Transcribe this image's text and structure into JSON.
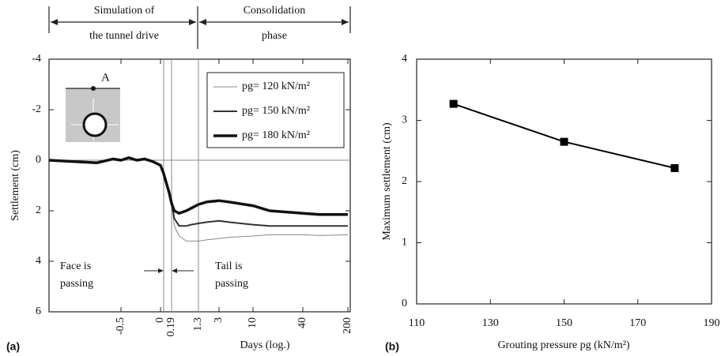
{
  "chart_data": [
    {
      "type": "line",
      "panel_label": "(a)",
      "xlabel": "Days (log.)",
      "ylabel": "Settlement (cm)",
      "xlim": [
        -1.4,
        200
      ],
      "xticks": [
        -0.5,
        0,
        0.19,
        1.3,
        3,
        10,
        40,
        200
      ],
      "ylim": [
        -4,
        6
      ],
      "yticks": [
        -4,
        -2,
        0,
        2,
        4,
        6
      ],
      "invert_y": true,
      "x": [
        -1.4,
        -0.8,
        -0.6,
        -0.5,
        -0.4,
        -0.3,
        -0.2,
        -0.1,
        0,
        0.05,
        0.1,
        0.15,
        0.19,
        0.3,
        0.5,
        0.8,
        1.0,
        1.3,
        2,
        3,
        5,
        10,
        20,
        40,
        100,
        200
      ],
      "series": [
        {
          "name": "pg= 120 kN/m²",
          "color": "#888888",
          "width": 1,
          "values": [
            0,
            0.1,
            -0.05,
            0,
            -0.1,
            0,
            -0.05,
            0.05,
            0.2,
            0.5,
            0.9,
            1.3,
            1.7,
            2.6,
            3.0,
            3.2,
            3.2,
            3.2,
            3.15,
            3.1,
            3.05,
            3.0,
            2.95,
            2.95,
            2.98,
            2.95
          ]
        },
        {
          "name": "pg= 150 kN/m²",
          "color": "#333333",
          "width": 2,
          "values": [
            0,
            0.1,
            -0.05,
            0,
            -0.1,
            0,
            -0.05,
            0.05,
            0.2,
            0.5,
            0.9,
            1.3,
            1.7,
            2.3,
            2.6,
            2.6,
            2.55,
            2.5,
            2.45,
            2.4,
            2.45,
            2.55,
            2.6,
            2.6,
            2.6,
            2.6
          ]
        },
        {
          "name": "pg= 180 kN/m²",
          "color": "#111111",
          "width": 3.5,
          "values": [
            0,
            0.1,
            -0.05,
            0,
            -0.1,
            0,
            -0.05,
            0.05,
            0.2,
            0.5,
            0.9,
            1.3,
            1.7,
            2.0,
            2.1,
            2.0,
            1.9,
            1.75,
            1.65,
            1.6,
            1.65,
            1.8,
            2.0,
            2.1,
            2.15,
            2.15
          ]
        }
      ],
      "annotations": {
        "phase_1": [
          "Simulation of",
          "the tunnel drive"
        ],
        "phase_2": [
          "Consolidation",
          "phase"
        ],
        "face": [
          "Face is",
          "passing"
        ],
        "tail": [
          "Tail is",
          "passing"
        ],
        "point": "A"
      }
    },
    {
      "type": "line",
      "panel_label": "(b)",
      "xlabel": "Grouting pressure pg (kN/m²)",
      "ylabel": "Maximum settlement (cm)",
      "xlim": [
        110,
        190
      ],
      "xticks": [
        110,
        130,
        150,
        170,
        190
      ],
      "ylim": [
        0,
        4
      ],
      "yticks": [
        0,
        1,
        2,
        3,
        4
      ],
      "x": [
        120,
        150,
        180
      ],
      "values": [
        3.27,
        2.65,
        2.22
      ],
      "color": "#000000",
      "marker": "square"
    }
  ]
}
